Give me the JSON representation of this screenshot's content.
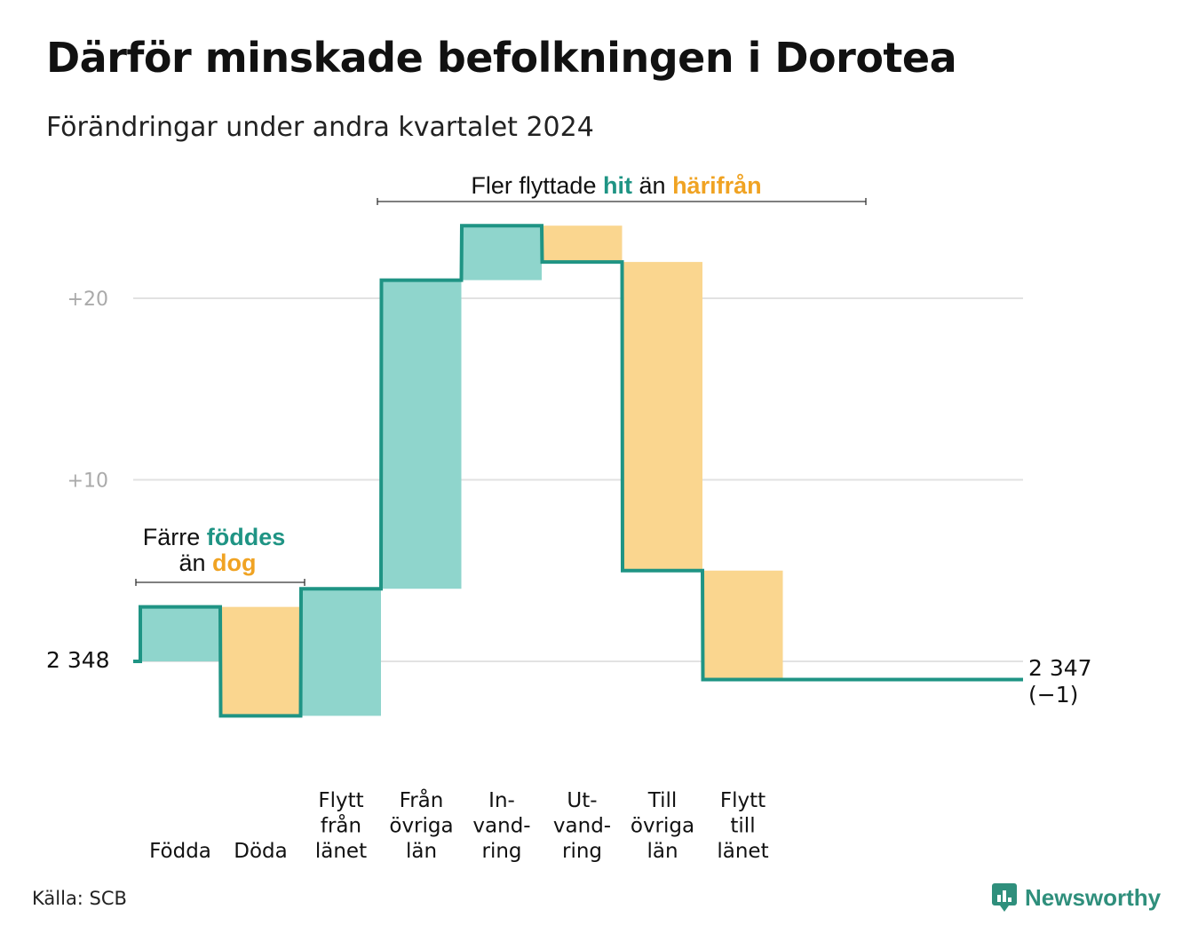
{
  "title": "Därför minskade befolkningen i Dorotea",
  "subtitle": "Förändringar under andra kvartalet 2024",
  "source": "Källa: SCB",
  "brand": "Newsworthy",
  "colors": {
    "increase": "#8fd5cc",
    "decrease": "#fad68f",
    "line": "#1f9484",
    "teal_text": "#1f9484",
    "orange_text": "#f0a323",
    "grid": "#e2e2e2"
  },
  "annotations": {
    "birth": {
      "prefix": "Färre",
      "teal": "föddes",
      "mid": "än",
      "orange": "dog"
    },
    "move": {
      "prefix": "Fler flyttade",
      "teal": "hit",
      "mid": "än",
      "orange": "härifrån"
    }
  },
  "chart_data": {
    "type": "waterfall",
    "start": {
      "label": "2 348",
      "value": 2348
    },
    "end": {
      "label": "2 347",
      "change_label": "(−1)",
      "value": 2347
    },
    "yticks": [
      {
        "value": 10,
        "label": "+10"
      },
      {
        "value": 20,
        "label": "+20"
      }
    ],
    "ylim": [
      -3,
      24
    ],
    "grid": true,
    "steps": [
      {
        "label": [
          "Födda"
        ],
        "change": 3,
        "kind": "increase"
      },
      {
        "label": [
          "Döda"
        ],
        "change": -6,
        "kind": "decrease"
      },
      {
        "label": [
          "Flytt",
          "från",
          "länet"
        ],
        "change": 7,
        "kind": "increase"
      },
      {
        "label": [
          "Från",
          "övriga",
          "län"
        ],
        "change": 17,
        "kind": "increase"
      },
      {
        "label": [
          "In-",
          "vand-",
          "ring"
        ],
        "change": 3,
        "kind": "increase"
      },
      {
        "label": [
          "Ut-",
          "vand-",
          "ring"
        ],
        "change": -2,
        "kind": "decrease"
      },
      {
        "label": [
          "Till",
          "övriga",
          "län"
        ],
        "change": -17,
        "kind": "decrease"
      },
      {
        "label": [
          "Flytt",
          "till",
          "länet"
        ],
        "change": -6,
        "kind": "decrease"
      }
    ]
  }
}
